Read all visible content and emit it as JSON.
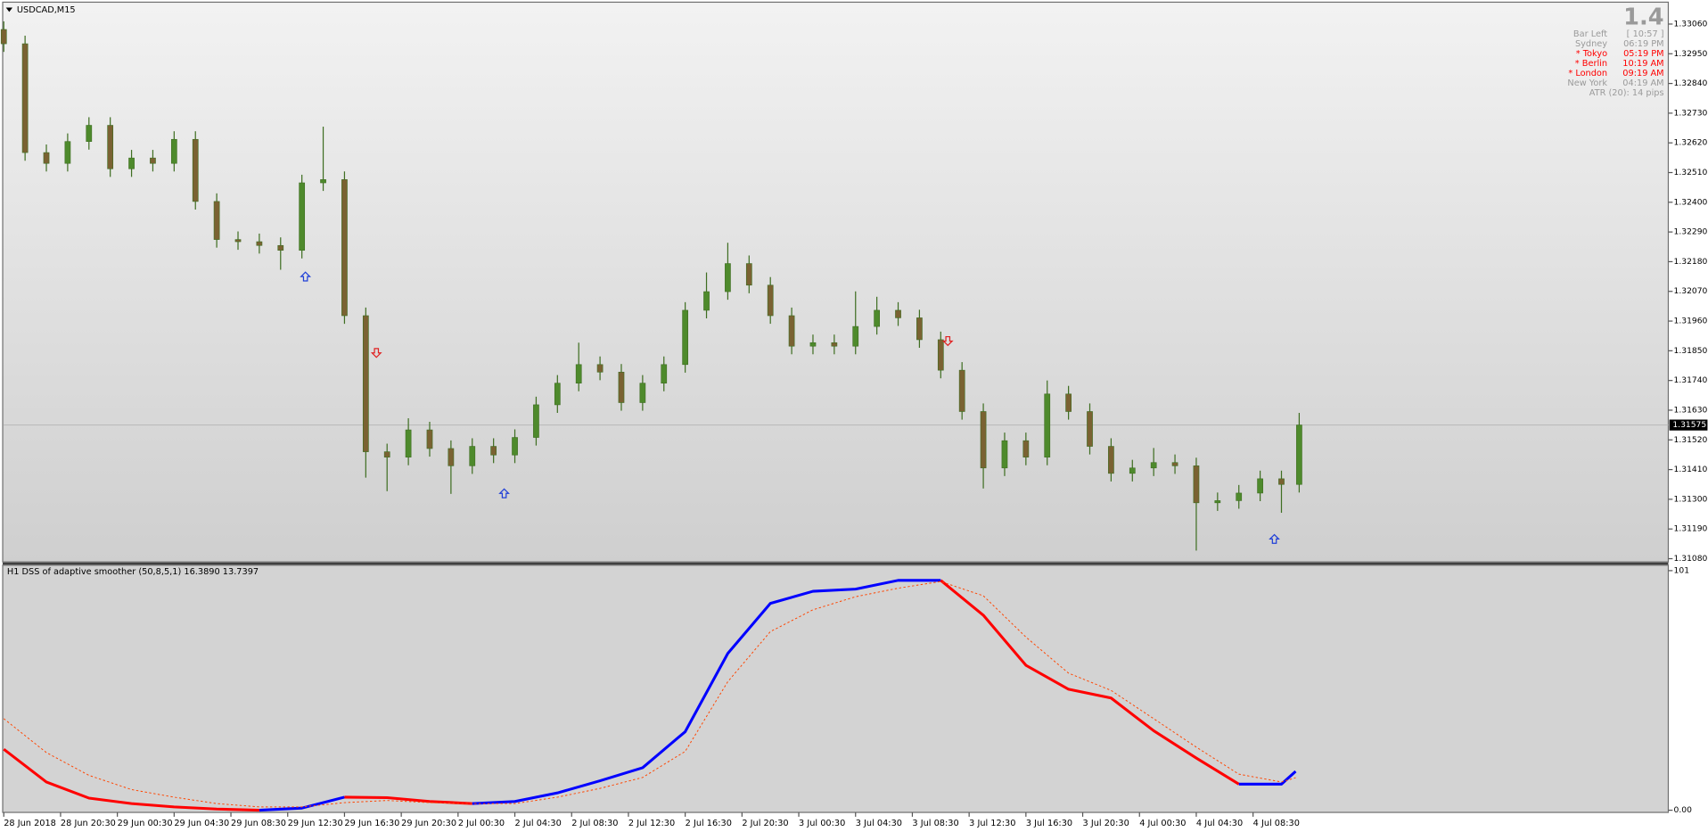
{
  "chart_data": [
    {
      "type": "candlestick",
      "title": "USDCAD,M15",
      "xlim": [
        0,
        469
      ],
      "xticks": [
        {
          "value": 0,
          "label": "28 Jun 2018"
        },
        {
          "value": 16,
          "label": "28 Jun 20:30"
        },
        {
          "value": 32,
          "label": "29 Jun 00:30"
        },
        {
          "value": 48,
          "label": "29 Jun 04:30"
        },
        {
          "value": 64,
          "label": "29 Jun 08:30"
        },
        {
          "value": 80,
          "label": "29 Jun 12:30"
        },
        {
          "value": 96,
          "label": "29 Jun 16:30"
        },
        {
          "value": 112,
          "label": "29 Jun 20:30"
        },
        {
          "value": 128,
          "label": "2 Jul 00:30"
        },
        {
          "value": 144,
          "label": "2 Jul 04:30"
        },
        {
          "value": 160,
          "label": "2 Jul 08:30"
        },
        {
          "value": 176,
          "label": "2 Jul 12:30"
        },
        {
          "value": 192,
          "label": "2 Jul 16:30"
        },
        {
          "value": 208,
          "label": "2 Jul 20:30"
        },
        {
          "value": 224,
          "label": "3 Jul 00:30"
        },
        {
          "value": 240,
          "label": "3 Jul 04:30"
        },
        {
          "value": 256,
          "label": "3 Jul 08:30"
        },
        {
          "value": 272,
          "label": "3 Jul 12:30"
        },
        {
          "value": 288,
          "label": "3 Jul 16:30"
        },
        {
          "value": 304,
          "label": "3 Jul 20:30"
        },
        {
          "value": 320,
          "label": "4 Jul 00:30"
        },
        {
          "value": 336,
          "label": "4 Jul 04:30"
        },
        {
          "value": 352,
          "label": "4 Jul 08:30"
        }
      ],
      "ylim": [
        1.31068,
        1.33137
      ],
      "yticks": [
        {
          "value": 1.3306,
          "label": "1.33060"
        },
        {
          "value": 1.3295,
          "label": "1.32950"
        },
        {
          "value": 1.3284,
          "label": "1.32840"
        },
        {
          "value": 1.3273,
          "label": "1.32730"
        },
        {
          "value": 1.3262,
          "label": "1.32620"
        },
        {
          "value": 1.3251,
          "label": "1.32510"
        },
        {
          "value": 1.324,
          "label": "1.32400"
        },
        {
          "value": 1.3229,
          "label": "1.32290"
        },
        {
          "value": 1.3218,
          "label": "1.32180"
        },
        {
          "value": 1.3207,
          "label": "1.32070"
        },
        {
          "value": 1.3196,
          "label": "1.31960"
        },
        {
          "value": 1.3185,
          "label": "1.31850"
        },
        {
          "value": 1.3174,
          "label": "1.31740"
        },
        {
          "value": 1.3163,
          "label": "1.31630"
        },
        {
          "value": 1.3152,
          "label": "1.31520"
        },
        {
          "value": 1.3141,
          "label": "1.31410"
        },
        {
          "value": 1.313,
          "label": "1.31300"
        },
        {
          "value": 1.3119,
          "label": "1.31190"
        },
        {
          "value": 1.3108,
          "label": "1.31080"
        }
      ],
      "last_price": 1.31575,
      "up_color": "#4e8a2c",
      "down_color": "#7a6232",
      "wick_color": "#3f6e22",
      "x": [
        0,
        6,
        12,
        18,
        24,
        30,
        36,
        42,
        48,
        54,
        60,
        66,
        72,
        78,
        84,
        90,
        96,
        102,
        108,
        114,
        120,
        126,
        132,
        138,
        144,
        150,
        156,
        162,
        168,
        174,
        180,
        186,
        192,
        198,
        204,
        210,
        216,
        222,
        228,
        234,
        240,
        246,
        252,
        258,
        264,
        270,
        276,
        282,
        288,
        294,
        300,
        306,
        312,
        318,
        324,
        330,
        336,
        342,
        348,
        354,
        360,
        365
      ],
      "open": [
        1.3304,
        1.32987,
        1.32584,
        1.32544,
        1.32625,
        1.32685,
        1.32524,
        1.32564,
        1.32544,
        1.32633,
        1.32403,
        1.32262,
        1.32254,
        1.3224,
        1.32222,
        1.32472,
        1.32484,
        1.3198,
        1.31476,
        1.31456,
        1.31557,
        1.31488,
        1.31424,
        1.31496,
        1.31464,
        1.31529,
        1.3165,
        1.3173,
        1.31799,
        1.31771,
        1.31658,
        1.3173,
        1.31799,
        1.32,
        1.32069,
        1.32173,
        1.32093,
        1.3198,
        1.31867,
        1.3188,
        1.31867,
        1.3194,
        1.32,
        1.31972,
        1.31891,
        1.31778,
        1.31625,
        1.31416,
        1.31517,
        1.31456,
        1.3169,
        1.31625,
        1.31496,
        1.31396,
        1.31416,
        1.31436,
        1.31424,
        1.31287,
        1.31295,
        1.31323,
        1.31376,
        1.31355
      ],
      "high": [
        1.3307,
        1.33017,
        1.32614,
        1.32655,
        1.32715,
        1.32715,
        1.32594,
        1.32594,
        1.32663,
        1.32663,
        1.32433,
        1.32292,
        1.32284,
        1.3227,
        1.32502,
        1.3268,
        1.32514,
        1.3201,
        1.31506,
        1.316,
        1.31587,
        1.31518,
        1.31526,
        1.31526,
        1.31559,
        1.3168,
        1.3176,
        1.3188,
        1.31829,
        1.31801,
        1.3176,
        1.31829,
        1.3203,
        1.3214,
        1.3225,
        1.32203,
        1.32123,
        1.3201,
        1.3191,
        1.3191,
        1.3207,
        1.3205,
        1.3203,
        1.32002,
        1.31921,
        1.31808,
        1.31655,
        1.31547,
        1.31547,
        1.3174,
        1.3172,
        1.31655,
        1.31526,
        1.31446,
        1.3149,
        1.31466,
        1.31454,
        1.31325,
        1.31353,
        1.31406,
        1.31406,
        1.3162
      ],
      "low": [
        1.32957,
        1.32554,
        1.32514,
        1.32514,
        1.32595,
        1.32494,
        1.32494,
        1.32514,
        1.32514,
        1.32373,
        1.32232,
        1.32224,
        1.3221,
        1.3215,
        1.32192,
        1.32442,
        1.3195,
        1.3138,
        1.3133,
        1.31426,
        1.31458,
        1.3132,
        1.31394,
        1.31434,
        1.31434,
        1.31499,
        1.3162,
        1.317,
        1.31741,
        1.31628,
        1.31628,
        1.317,
        1.31769,
        1.3197,
        1.32039,
        1.32063,
        1.3195,
        1.31837,
        1.31837,
        1.31837,
        1.31837,
        1.3191,
        1.31942,
        1.31861,
        1.31748,
        1.31595,
        1.3134,
        1.31386,
        1.31426,
        1.31426,
        1.31595,
        1.31466,
        1.31366,
        1.31366,
        1.31386,
        1.31394,
        1.3111,
        1.31257,
        1.31265,
        1.31293,
        1.3125,
        1.31325
      ],
      "close": [
        1.32987,
        1.32584,
        1.32544,
        1.32625,
        1.32685,
        1.32524,
        1.32564,
        1.32544,
        1.32633,
        1.32403,
        1.32262,
        1.32254,
        1.3224,
        1.32222,
        1.32472,
        1.32484,
        1.3198,
        1.31476,
        1.31456,
        1.31557,
        1.31488,
        1.31424,
        1.31496,
        1.31464,
        1.31529,
        1.3165,
        1.3173,
        1.31799,
        1.31771,
        1.31658,
        1.3173,
        1.31799,
        1.32,
        1.32069,
        1.32173,
        1.32093,
        1.3198,
        1.31867,
        1.3188,
        1.31867,
        1.3194,
        1.32,
        1.31972,
        1.31891,
        1.31778,
        1.31625,
        1.31416,
        1.31517,
        1.31456,
        1.3169,
        1.31625,
        1.31496,
        1.31396,
        1.31416,
        1.31436,
        1.31424,
        1.31287,
        1.31295,
        1.31323,
        1.31376,
        1.31355,
        1.31575
      ],
      "signals": [
        {
          "x": 85,
          "price": 1.32125,
          "dir": "up",
          "color": "#1f3fd8"
        },
        {
          "x": 105,
          "price": 1.31842,
          "dir": "down",
          "color": "#e02020"
        },
        {
          "x": 141,
          "price": 1.31322,
          "dir": "up",
          "color": "#1f3fd8"
        },
        {
          "x": 266,
          "price": 1.31886,
          "dir": "down",
          "color": "#e02020"
        },
        {
          "x": 358,
          "price": 1.31153,
          "dir": "up",
          "color": "#1f3fd8"
        }
      ]
    },
    {
      "type": "line",
      "title": "H1 DSS of adaptive smoother (50,8,5,1) 16.3890 13.7397",
      "ylim": [
        0,
        101
      ],
      "yticks": [
        101,
        {
          "value": 0,
          "label": "0.00"
        }
      ],
      "x": [
        0,
        12,
        24,
        36,
        48,
        60,
        72,
        84,
        96,
        108,
        120,
        132,
        144,
        156,
        168,
        180,
        192,
        204,
        216,
        228,
        240,
        252,
        264,
        276,
        288,
        300,
        312,
        324,
        336,
        348,
        360,
        364
      ],
      "series": [
        {
          "up_color": "#0000ff",
          "down_color": "#ff0000",
          "width": 2.5,
          "values": [
            25.7,
            11.9,
            5.1,
            2.8,
            1.4,
            0.5,
            0.0,
            0.9,
            5.5,
            5.3,
            3.7,
            2.8,
            3.7,
            7.3,
            12.4,
            17.9,
            33.1,
            66.1,
            87.2,
            92.3,
            93.2,
            96.9,
            96.9,
            82.2,
            61.1,
            51.0,
            47.3,
            33.5,
            22.0,
            11.0,
            11.0,
            16.4
          ]
        },
        {
          "color": "#ff4500",
          "dashed": true,
          "width": 0.8,
          "values": [
            38.6,
            24.3,
            14.7,
            8.7,
            5.5,
            2.8,
            1.4,
            1.4,
            3.2,
            4.1,
            3.2,
            2.8,
            2.8,
            5.5,
            9.2,
            13.8,
            24.8,
            54.2,
            75.3,
            84.5,
            90.0,
            93.6,
            96.4,
            90.4,
            73.0,
            57.8,
            50.5,
            38.6,
            26.6,
            15.2,
            11.9,
            13.7
          ]
        }
      ]
    }
  ],
  "info": {
    "spread": "1.4",
    "rows": [
      {
        "label": "Bar Left",
        "value": "[ 10:57 ]",
        "color": "#9a9a9a"
      },
      {
        "label": "Sydney",
        "value": "06:19 PM",
        "color": "#9a9a9a"
      },
      {
        "label": "* Tokyo",
        "value": "05:19 PM",
        "color": "#ff0000"
      },
      {
        "label": "* Berlin",
        "value": "10:19 AM",
        "color": "#ff0000"
      },
      {
        "label": "* London",
        "value": "09:19 AM",
        "color": "#ff0000"
      },
      {
        "label": "New York",
        "value": "04:19 AM",
        "color": "#9a9a9a"
      }
    ],
    "atr": "ATR (20): 14 pips"
  }
}
